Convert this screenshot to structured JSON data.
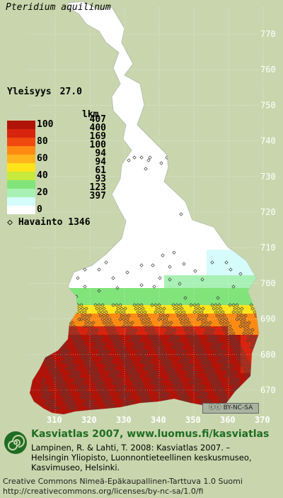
{
  "map": {
    "species": "Pteridium aquilinum",
    "frequency_label": "Yleisyys",
    "frequency_value": "27.0",
    "grid_y_labels": [
      "770",
      "760",
      "750",
      "740",
      "730",
      "720",
      "710",
      "700",
      "690",
      "680",
      "670"
    ],
    "grid_x_labels": [
      "310",
      "320",
      "330",
      "340",
      "350",
      "360",
      "370"
    ]
  },
  "legend": {
    "unit": "lkm",
    "bins": [
      {
        "label": "100",
        "color": "#b01408",
        "count": "407"
      },
      {
        "label": "",
        "color": "#d8240e",
        "count": "400"
      },
      {
        "label": "80",
        "color": "#f04a10",
        "count": "169"
      },
      {
        "label": "",
        "color": "#ff8a12",
        "count": "100"
      },
      {
        "label": "60",
        "color": "#ffb41e",
        "count": "94"
      },
      {
        "label": "",
        "color": "#ffe41c",
        "count": "94"
      },
      {
        "label": "40",
        "color": "#c8ea3c",
        "count": "61"
      },
      {
        "label": "",
        "color": "#80e47a",
        "count": "93"
      },
      {
        "label": "20",
        "color": "#a8f0b4",
        "count": "123"
      },
      {
        "label": "",
        "color": "#d6fbfb",
        "count": "397"
      },
      {
        "label": "0",
        "color": "#ffffff",
        "count": ""
      }
    ],
    "observation_icon": "diamond-icon",
    "observation_label": "Havainto",
    "observation_count": "1346"
  },
  "license_badge": "BY-NC-SA",
  "footer": {
    "title": "Kasviatlas 2007, www.luomus.fi/kasviatlas",
    "citation": [
      "Lampinen, R. & Lahti, T. 2008: Kasviatlas 2007. –",
      "Helsingin Yliopisto, Luonnontieteellinen keskusmuseo,",
      "Kasvimuseo, Helsinki."
    ],
    "license": [
      "Creative Commons Nimeä-Epäkaupallinen-Tarttuva 1.0 Suomi",
      "http://creativecommons.org/licenses/by-nc-sa/1.0/fi"
    ],
    "logo_icon": "spiral-logo-icon"
  }
}
